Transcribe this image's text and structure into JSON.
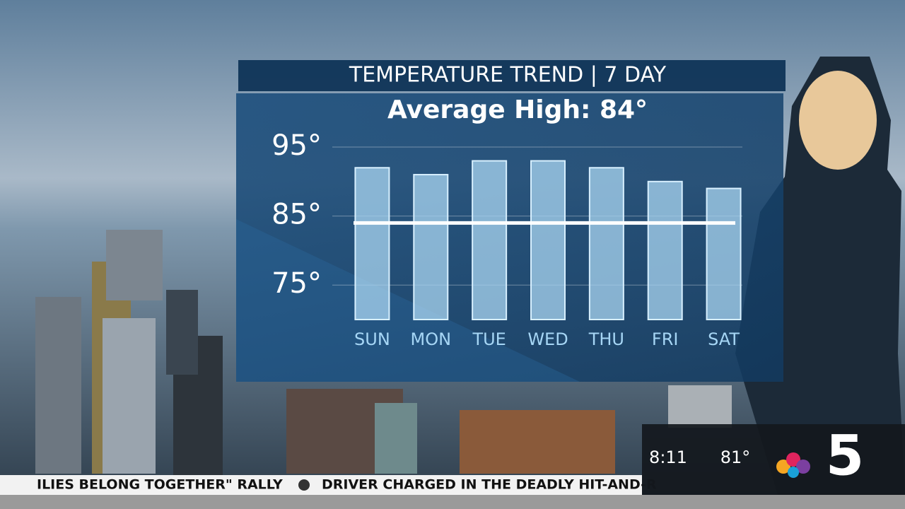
{
  "chart_data": {
    "type": "bar",
    "title": "TEMPERATURE TREND | 7 DAY",
    "subtitle": "Average High: 84°",
    "categories": [
      "SUN",
      "MON",
      "TUE",
      "WED",
      "THU",
      "FRI",
      "SAT"
    ],
    "values": [
      92,
      91,
      93,
      93,
      92,
      90,
      89
    ],
    "color": "#a9d6f2",
    "reference_line": 84,
    "ylim": [
      70,
      95
    ],
    "yticks": [
      {
        "value": 75,
        "label": "75°"
      },
      {
        "value": 85,
        "label": "85°"
      },
      {
        "value": 95,
        "label": "95°"
      }
    ],
    "grid": true
  },
  "ticker": {
    "left": "ILIES BELONG TOGETHER\" RALLY",
    "right": "DRIVER CHARGED IN THE DEADLY HIT-AND-R"
  },
  "bug": {
    "time": "8:11",
    "temperature": "81°",
    "channel": "5"
  }
}
